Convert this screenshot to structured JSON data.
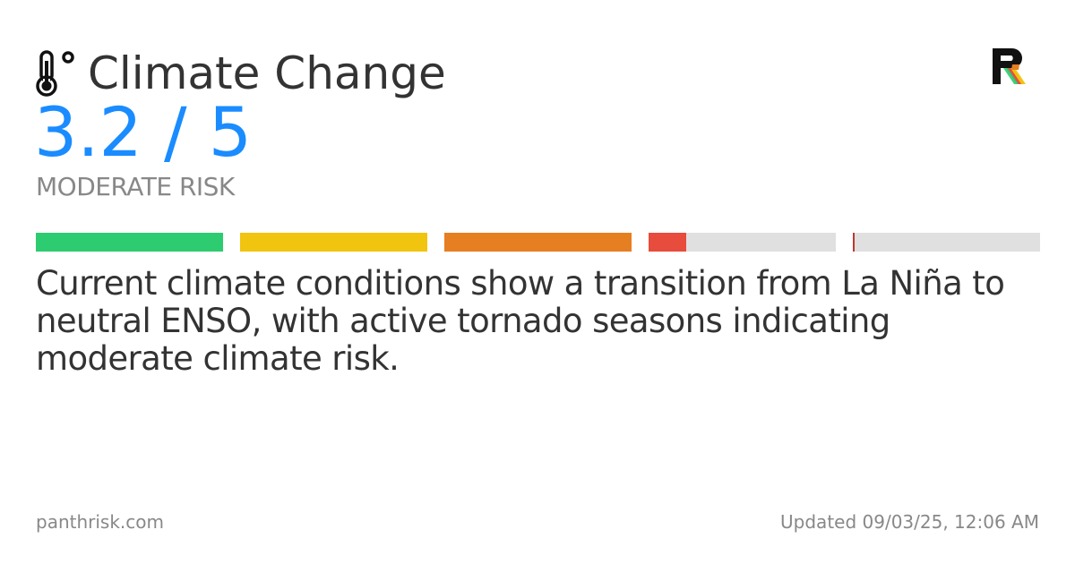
{
  "card": {
    "title": "Climate Change",
    "title_icon": "thermometer-icon",
    "score_text": "3.2 / 5",
    "score_value": 3.2,
    "score_max": 5,
    "risk_level": "MODERATE RISK",
    "description": "Current climate conditions show a transition from La Niña to neutral ENSO, with active tornado seasons indicating moderate climate risk.",
    "footer": {
      "site": "panthrisk.com",
      "updated": "Updated 09/03/25, 12:06 AM"
    },
    "logo_icon": "panthrisk-logo-icon"
  },
  "risk_scale": {
    "segments": [
      {
        "color": "#2ecc71",
        "fill_fraction": 1.0
      },
      {
        "color": "#f1c40f",
        "fill_fraction": 1.0
      },
      {
        "color": "#e67e22",
        "fill_fraction": 1.0
      },
      {
        "color": "#e74c3c",
        "fill_fraction": 0.2
      },
      {
        "color": "#c0392b",
        "fill_fraction": 0.0
      }
    ],
    "empty_color": "#e0e0e0"
  },
  "colors": {
    "accent": "#1a8cff",
    "title_text": "#333333",
    "muted_text": "#888888",
    "background": "#ffffff"
  }
}
